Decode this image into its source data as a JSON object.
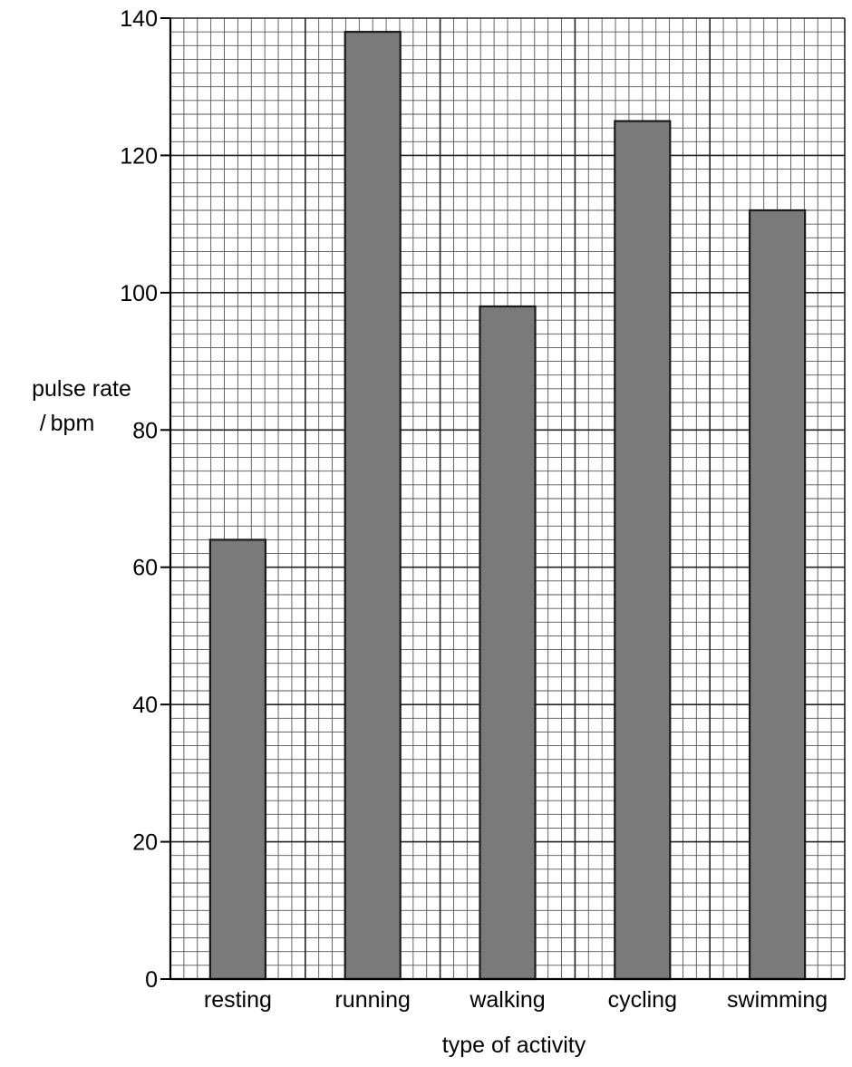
{
  "chart_data": {
    "type": "bar",
    "categories": [
      "resting",
      "running",
      "walking",
      "cycling",
      "swimming"
    ],
    "values": [
      64,
      138,
      98,
      125,
      112
    ],
    "title": "",
    "xlabel": "type of activity",
    "ylabel": [
      "pulse rate",
      "/ bpm"
    ],
    "ylim": [
      0,
      140
    ],
    "yticks": [
      "0",
      "20",
      "40",
      "60",
      "80",
      "100",
      "120",
      "140"
    ],
    "grid": true,
    "minor_grid_per_major": 10,
    "colors": {
      "bar_fill": "#7a7a7a",
      "bar_stroke": "#1a1a1a",
      "grid_major": "#222222",
      "grid_minor": "#555555"
    }
  }
}
